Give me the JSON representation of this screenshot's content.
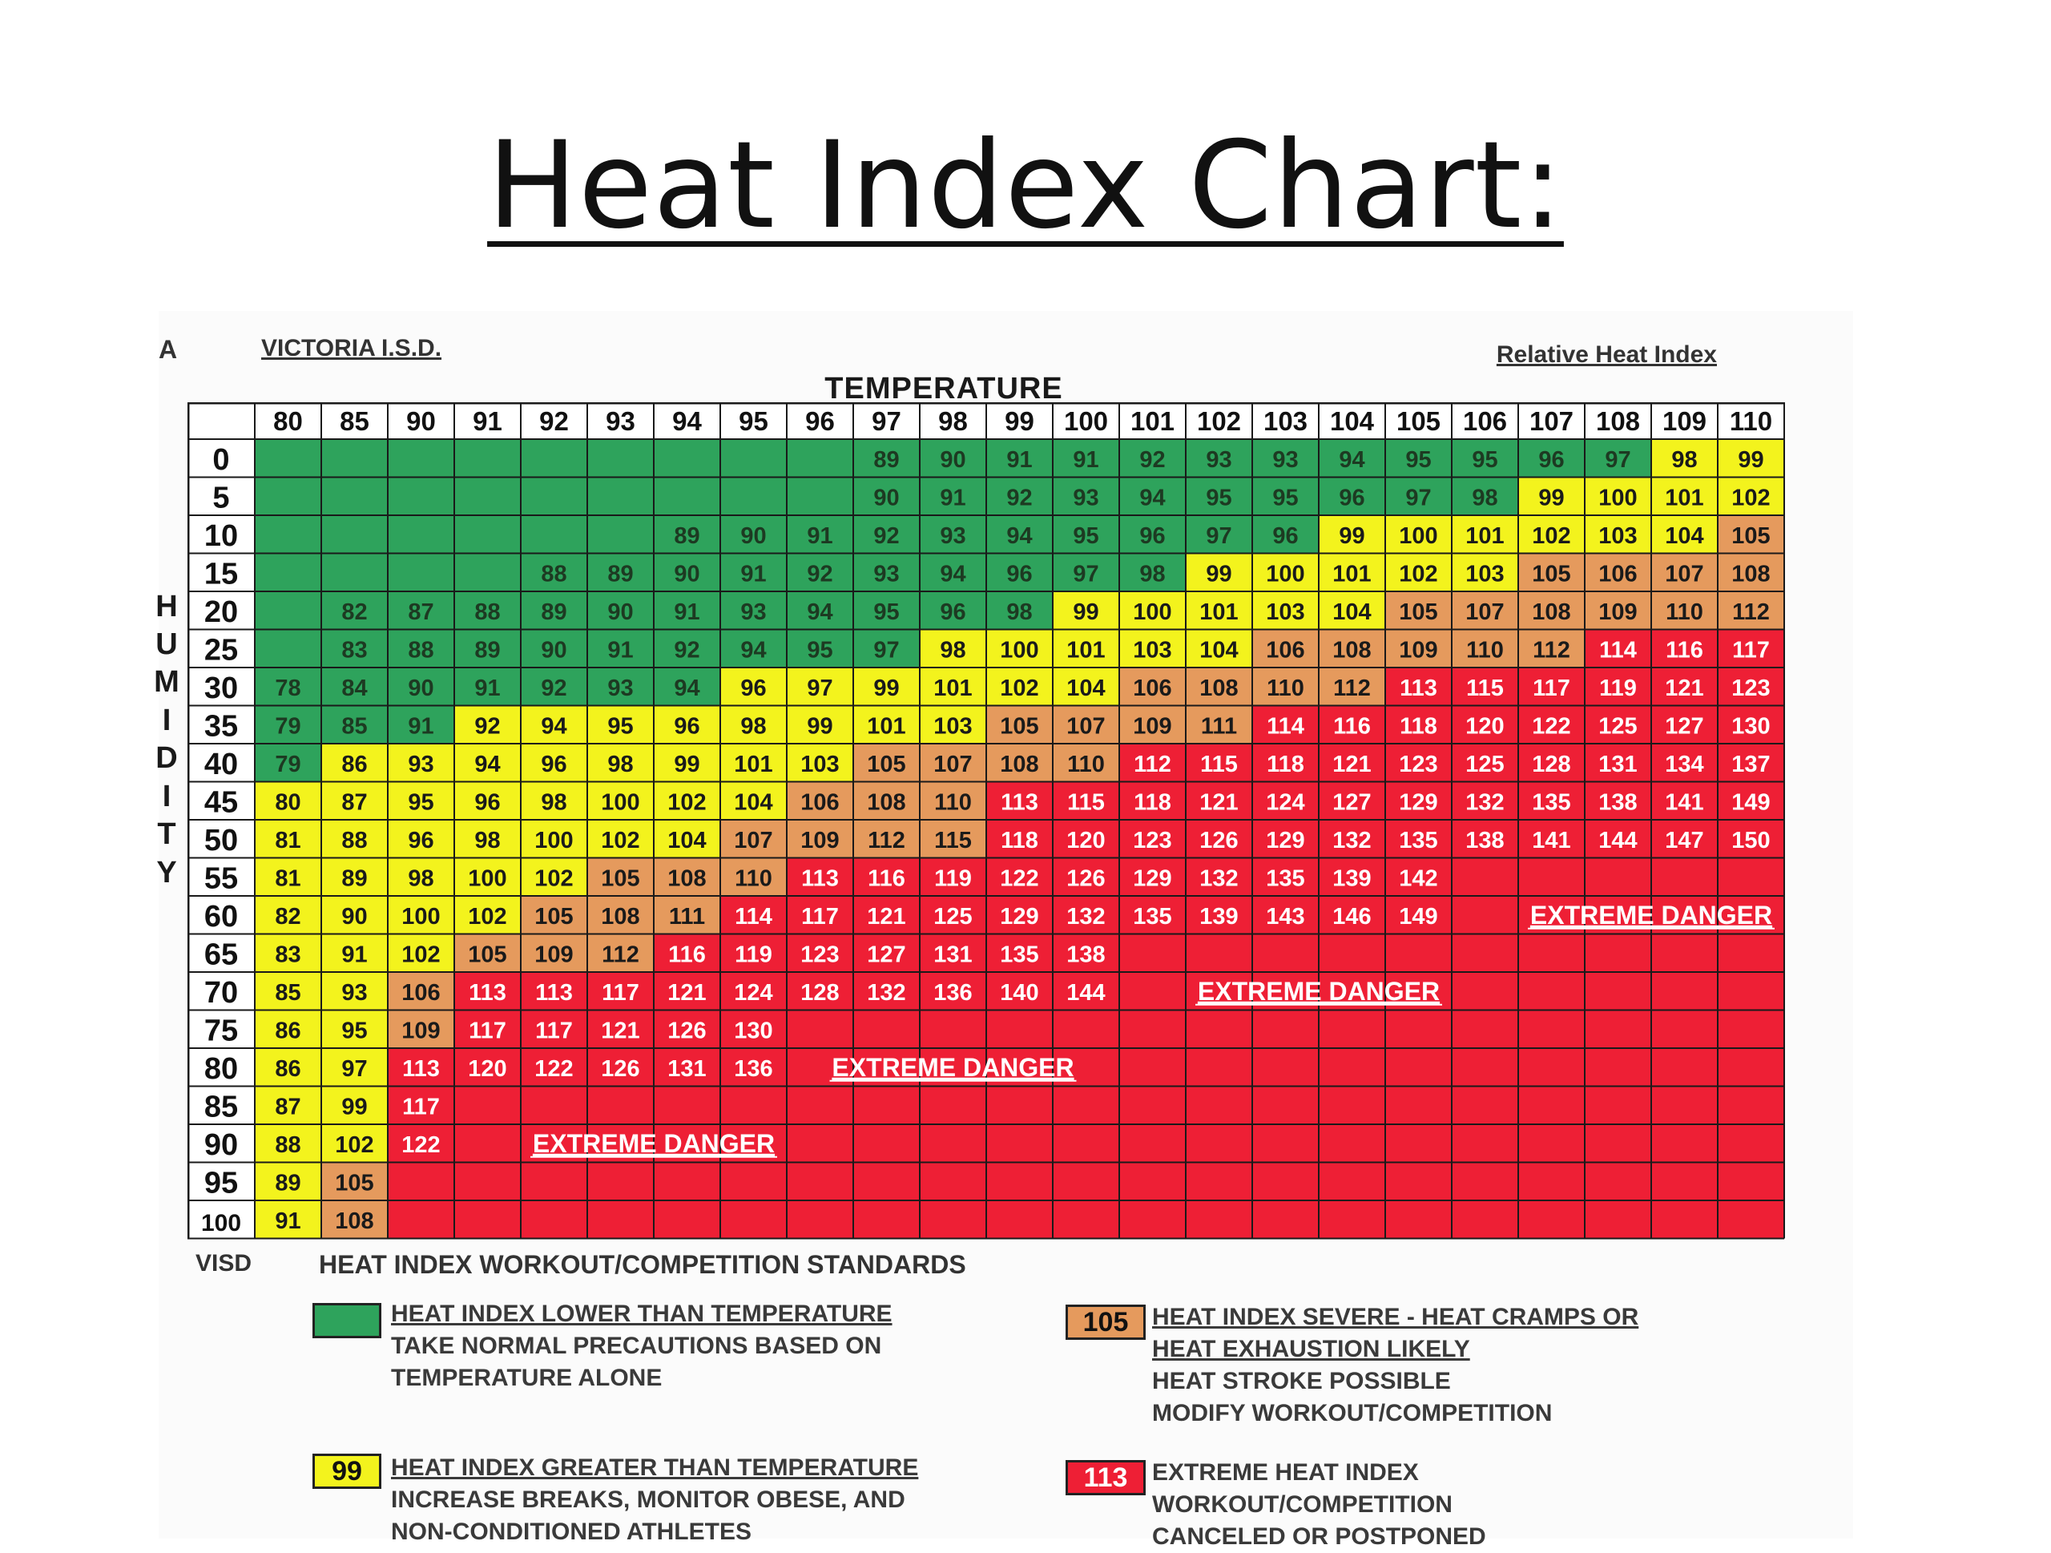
{
  "slide": {
    "title": "Heat Index Chart:"
  },
  "header": {
    "corner_mark": "A",
    "organization": "VICTORIA I.S.D.",
    "relative_label": "Relative Heat Index",
    "temperature_title": "TEMPERATURE",
    "humidity_letters": [
      "H",
      "U",
      "M",
      "I",
      "D",
      "I",
      "T",
      "Y"
    ]
  },
  "colors": {
    "green": "#2ea35c",
    "yellow": "#f3f31d",
    "orange": "#e59a5d",
    "red": "#ee1f35",
    "white": "#ffffff",
    "grid_line": "#1a1a1a"
  },
  "chart_data": {
    "type": "table",
    "title": "TEMPERATURE",
    "xlabel": "TEMPERATURE",
    "ylabel": "HUMIDITY",
    "temperatures": [
      80,
      85,
      90,
      91,
      92,
      93,
      94,
      95,
      96,
      97,
      98,
      99,
      100,
      101,
      102,
      103,
      104,
      105,
      106,
      107,
      108,
      109,
      110
    ],
    "humidities": [
      0,
      5,
      10,
      15,
      20,
      25,
      30,
      35,
      40,
      45,
      50,
      55,
      60,
      65,
      70,
      75,
      80,
      85,
      90,
      95,
      100
    ],
    "values": [
      [
        null,
        null,
        null,
        null,
        null,
        null,
        null,
        null,
        null,
        89,
        90,
        91,
        91,
        92,
        93,
        93,
        94,
        95,
        95,
        96,
        97,
        98,
        99
      ],
      [
        null,
        null,
        null,
        null,
        null,
        null,
        null,
        null,
        null,
        90,
        91,
        92,
        93,
        94,
        95,
        95,
        96,
        97,
        98,
        99,
        100,
        101,
        102
      ],
      [
        null,
        null,
        null,
        null,
        null,
        null,
        89,
        90,
        91,
        92,
        93,
        94,
        95,
        96,
        97,
        96,
        99,
        100,
        101,
        102,
        103,
        104,
        105
      ],
      [
        null,
        null,
        null,
        null,
        88,
        89,
        90,
        91,
        92,
        93,
        94,
        96,
        97,
        98,
        99,
        100,
        101,
        102,
        103,
        105,
        106,
        107,
        108
      ],
      [
        null,
        82,
        87,
        88,
        89,
        90,
        91,
        93,
        94,
        95,
        96,
        98,
        99,
        100,
        101,
        103,
        104,
        105,
        107,
        108,
        109,
        110,
        112
      ],
      [
        null,
        83,
        88,
        89,
        90,
        91,
        92,
        94,
        95,
        97,
        98,
        100,
        101,
        103,
        104,
        106,
        108,
        109,
        110,
        112,
        114,
        116,
        117
      ],
      [
        78,
        84,
        90,
        91,
        92,
        93,
        94,
        96,
        97,
        99,
        101,
        102,
        104,
        106,
        108,
        110,
        112,
        113,
        115,
        117,
        119,
        121,
        123
      ],
      [
        79,
        85,
        91,
        92,
        94,
        95,
        96,
        98,
        99,
        101,
        103,
        105,
        107,
        109,
        111,
        114,
        116,
        118,
        120,
        122,
        125,
        127,
        130
      ],
      [
        79,
        86,
        93,
        94,
        96,
        98,
        99,
        101,
        103,
        105,
        107,
        108,
        110,
        112,
        115,
        118,
        121,
        123,
        125,
        128,
        131,
        134,
        137
      ],
      [
        80,
        87,
        95,
        96,
        98,
        100,
        102,
        104,
        106,
        108,
        110,
        113,
        115,
        118,
        121,
        124,
        127,
        129,
        132,
        135,
        138,
        141,
        149
      ],
      [
        81,
        88,
        96,
        98,
        100,
        102,
        104,
        107,
        109,
        112,
        115,
        118,
        120,
        123,
        126,
        129,
        132,
        135,
        138,
        141,
        144,
        147,
        150
      ],
      [
        81,
        89,
        98,
        100,
        102,
        105,
        108,
        110,
        113,
        116,
        119,
        122,
        126,
        129,
        132,
        135,
        139,
        142,
        null,
        null,
        null,
        null,
        null
      ],
      [
        82,
        90,
        100,
        102,
        105,
        108,
        111,
        114,
        117,
        121,
        125,
        129,
        132,
        135,
        139,
        143,
        146,
        149,
        null,
        null,
        null,
        null,
        null
      ],
      [
        83,
        91,
        102,
        105,
        109,
        112,
        116,
        119,
        123,
        127,
        131,
        135,
        138,
        null,
        null,
        null,
        null,
        null,
        null,
        null,
        null,
        null,
        null
      ],
      [
        85,
        93,
        106,
        113,
        113,
        117,
        121,
        124,
        128,
        132,
        136,
        140,
        144,
        null,
        null,
        null,
        null,
        null,
        null,
        null,
        null,
        null,
        null
      ],
      [
        86,
        95,
        109,
        117,
        117,
        121,
        126,
        130,
        null,
        null,
        null,
        null,
        null,
        null,
        null,
        null,
        null,
        null,
        null,
        null,
        null,
        null,
        null
      ],
      [
        86,
        97,
        113,
        120,
        122,
        126,
        131,
        136,
        null,
        null,
        null,
        null,
        null,
        null,
        null,
        null,
        null,
        null,
        null,
        null,
        null,
        null,
        null
      ],
      [
        87,
        99,
        117,
        null,
        null,
        null,
        null,
        null,
        null,
        null,
        null,
        null,
        null,
        null,
        null,
        null,
        null,
        null,
        null,
        null,
        null,
        null,
        null
      ],
      [
        88,
        102,
        122,
        null,
        null,
        null,
        null,
        null,
        null,
        null,
        null,
        null,
        null,
        null,
        null,
        null,
        null,
        null,
        null,
        null,
        null,
        null,
        null
      ],
      [
        89,
        105,
        null,
        null,
        null,
        null,
        null,
        null,
        null,
        null,
        null,
        null,
        null,
        null,
        null,
        null,
        null,
        null,
        null,
        null,
        null,
        null,
        null
      ],
      [
        91,
        108,
        null,
        null,
        null,
        null,
        null,
        null,
        null,
        null,
        null,
        null,
        null,
        null,
        null,
        null,
        null,
        null,
        null,
        null,
        null,
        null,
        null
      ]
    ],
    "colors": [
      "GGGGGGGGGGGGGGGGGGGGGYY",
      "GGGGGGGGGGGGGGGGGGGYYYY",
      "GGGGGGGGGGGGGGGGYYYYYYO",
      "GGGGGGGGGGGGGGYYYYYOOOO",
      "GGGGGGGGGGGGYYYYYOOOOOO",
      "GGGGGGGGGGYYYYYOOOOORRR",
      "GGGGGGGYYYYYYOOOORRRRRR",
      "GGGYYYYYYYYOOOORRRRRRRR",
      "GYYYYYYYYOOOORRRRRRRRRR",
      "YYYYYYYYOOORRRRRRRRRRRR",
      "YYYYYYYOOOORRRRRRRRRRRR",
      "YYYYYOOORRRRRRRRRRRRRRR",
      "YYYYOOORRRRRRRRRRRRRRRR",
      "YYYOOORRRRRRRRRRRRRRRRR",
      "YYORRRRRRRRRRRRRRRRRRRR",
      "YYORRRRRRRRRRRRRRRRRRRR",
      "YYRRRRRRRRRRRRRRRRRRRRR",
      "YYRRRRRRRRRRRRRRRRRRRRR",
      "YYRRRRRRRRRRRRRRRRRRRRR",
      "YORRRRRRRRRRRRRRRRRRRRR",
      "YORRRRRRRRRRRRRRRRRRRRR"
    ],
    "annotations": [
      {
        "text": "EXTREME DANGER",
        "row": 18,
        "col_start": 4,
        "col_end": 7
      },
      {
        "text": "EXTREME DANGER",
        "row": 16,
        "col_start": 8,
        "col_end": 12
      },
      {
        "text": "EXTREME DANGER",
        "row": 14,
        "col_start": 14,
        "col_end": 17
      },
      {
        "text": "EXTREME DANGER",
        "row": 12,
        "col_start": 19,
        "col_end": 22
      }
    ]
  },
  "legend": {
    "visd": "VISD",
    "standards_title": "HEAT INDEX WORKOUT/COMPETITION STANDARDS",
    "items": [
      {
        "swatch": "",
        "color": "green",
        "heading": "HEAT INDEX LOWER THAN TEMPERATURE",
        "lines": [
          "TAKE NORMAL PRECAUTIONS BASED ON",
          "TEMPERATURE ALONE"
        ]
      },
      {
        "swatch": "99",
        "color": "yellow",
        "heading": "HEAT INDEX GREATER THAN TEMPERATURE",
        "lines": [
          "INCREASE BREAKS, MONITOR OBESE, AND",
          "NON-CONDITIONED ATHLETES"
        ]
      },
      {
        "swatch": "105",
        "color": "orange",
        "heading": "HEAT INDEX SEVERE - HEAT CRAMPS OR",
        "heading2": "HEAT EXHAUSTION LIKELY",
        "lines": [
          "HEAT STROKE POSSIBLE",
          "MODIFY WORKOUT/COMPETITION"
        ]
      },
      {
        "swatch": "113",
        "color": "red",
        "heading": "EXTREME HEAT INDEX",
        "lines": [
          "WORKOUT/COMPETITION",
          "CANCELED OR POSTPONED"
        ]
      }
    ]
  }
}
